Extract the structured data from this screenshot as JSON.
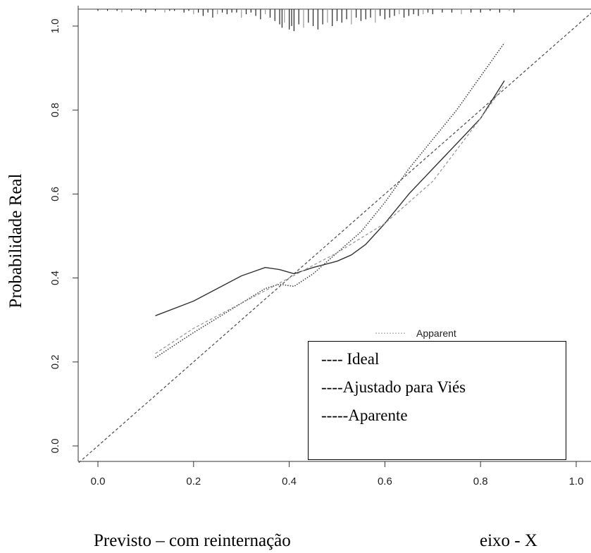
{
  "chart_data": {
    "type": "line",
    "title": "",
    "xlabel": "Previsto – com reinternação",
    "xlabel_note": "eixo - X",
    "ylabel": "Probabilidade Real",
    "xlim": [
      -0.04,
      1.02
    ],
    "ylim": [
      -0.04,
      1.04
    ],
    "x_ticks": [
      "0.0",
      "0.2",
      "0.4",
      "0.6",
      "0.8",
      "1.0"
    ],
    "y_ticks": [
      "0.0",
      "0.2",
      "0.4",
      "0.6",
      "0.8",
      "1.0"
    ],
    "grid": false,
    "legend_position": "bottom-right",
    "original_legend_fragment": "Apparent",
    "legend": [
      "---- Ideal",
      "----Ajustado para Viés",
      "-----Aparente"
    ],
    "series": [
      {
        "name": "Ideal",
        "style": "dashed",
        "x": [
          -0.04,
          1.04
        ],
        "y": [
          -0.04,
          1.04
        ]
      },
      {
        "name": "Ajustado para Viés",
        "style": "solid",
        "x": [
          0.12,
          0.2,
          0.3,
          0.35,
          0.38,
          0.41,
          0.45,
          0.5,
          0.53,
          0.56,
          0.6,
          0.65,
          0.7,
          0.75,
          0.8,
          0.85
        ],
        "y": [
          0.31,
          0.345,
          0.405,
          0.425,
          0.42,
          0.41,
          0.425,
          0.44,
          0.455,
          0.48,
          0.53,
          0.6,
          0.66,
          0.72,
          0.78,
          0.87
        ]
      },
      {
        "name": "Aparente",
        "style": "dotted",
        "x": [
          0.12,
          0.2,
          0.3,
          0.35,
          0.38,
          0.41,
          0.45,
          0.5,
          0.55,
          0.6,
          0.65,
          0.7,
          0.75,
          0.8,
          0.85
        ],
        "y": [
          0.21,
          0.27,
          0.34,
          0.375,
          0.385,
          0.38,
          0.41,
          0.46,
          0.51,
          0.58,
          0.66,
          0.73,
          0.8,
          0.88,
          0.96
        ]
      },
      {
        "name": "",
        "style": "dashed",
        "x": [
          0.12,
          0.2,
          0.3,
          0.4,
          0.5,
          0.6,
          0.7,
          0.8,
          0.85
        ],
        "y": [
          0.22,
          0.28,
          0.34,
          0.4,
          0.46,
          0.53,
          0.63,
          0.78,
          0.86
        ]
      }
    ],
    "rug": {
      "x": [
        0.0,
        0.02,
        0.04,
        0.05,
        0.07,
        0.09,
        0.1,
        0.12,
        0.14,
        0.15,
        0.16,
        0.18,
        0.19,
        0.2,
        0.21,
        0.22,
        0.23,
        0.24,
        0.25,
        0.26,
        0.27,
        0.28,
        0.29,
        0.3,
        0.31,
        0.32,
        0.33,
        0.34,
        0.35,
        0.36,
        0.37,
        0.38,
        0.385,
        0.39,
        0.4,
        0.405,
        0.41,
        0.42,
        0.43,
        0.44,
        0.45,
        0.46,
        0.47,
        0.48,
        0.49,
        0.5,
        0.51,
        0.52,
        0.53,
        0.54,
        0.55,
        0.56,
        0.57,
        0.58,
        0.59,
        0.6,
        0.61,
        0.62,
        0.63,
        0.64,
        0.65,
        0.66,
        0.67,
        0.68,
        0.69,
        0.7,
        0.72,
        0.74,
        0.76,
        0.78,
        0.8,
        0.82,
        0.84,
        0.86,
        0.87
      ],
      "h": [
        1,
        1,
        1,
        2,
        1,
        1,
        2,
        1,
        2,
        1,
        1,
        2,
        1,
        3,
        2,
        4,
        2,
        5,
        3,
        2,
        3,
        2,
        2,
        5,
        3,
        2,
        4,
        6,
        3,
        5,
        7,
        9,
        11,
        8,
        12,
        10,
        13,
        9,
        11,
        8,
        10,
        12,
        9,
        8,
        10,
        7,
        8,
        6,
        9,
        5,
        7,
        6,
        5,
        8,
        4,
        6,
        5,
        4,
        3,
        5,
        4,
        3,
        4,
        3,
        2,
        3,
        2,
        2,
        3,
        2,
        2,
        1,
        2,
        1,
        2
      ]
    }
  }
}
